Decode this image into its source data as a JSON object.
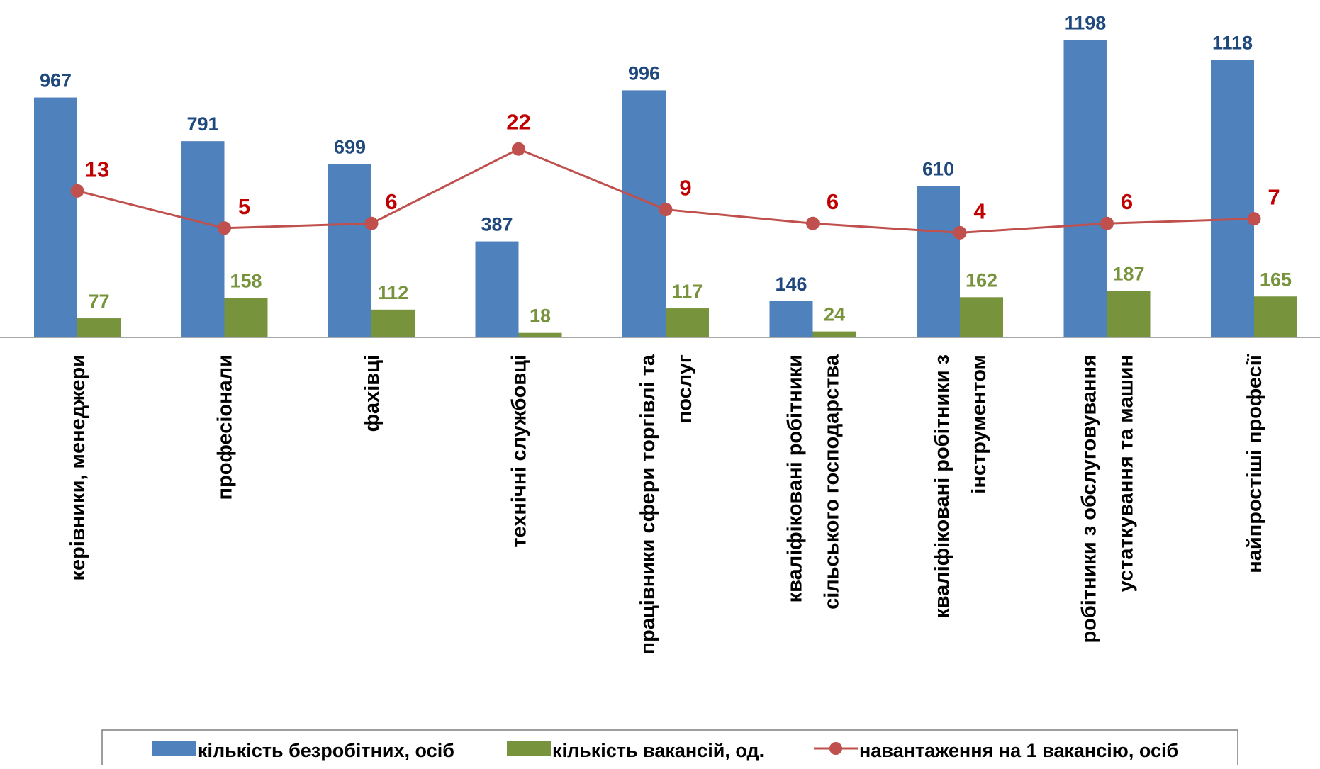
{
  "chart_data": {
    "type": "bar",
    "categories": [
      [
        "керівники, менеджери"
      ],
      [
        "професіонали"
      ],
      [
        "фахівці"
      ],
      [
        "технічні службовці"
      ],
      [
        "працівники сфери торгівлі та",
        "послуг"
      ],
      [
        "кваліфіковані робітники",
        "сільського господарства"
      ],
      [
        "кваліфіковані робітники з",
        "інструментом"
      ],
      [
        "робітники з обслуговування",
        "устаткування та машин"
      ],
      [
        "найпростіші професії"
      ]
    ],
    "series": [
      {
        "name": "кількість безробітних, осіб",
        "type": "bar",
        "color": "#4F81BD",
        "label_color": "#1F497D",
        "values": [
          967,
          791,
          699,
          387,
          996,
          146,
          610,
          1198,
          1118
        ]
      },
      {
        "name": "кількість вакансій, од.",
        "type": "bar",
        "color": "#77933C",
        "label_color": "#77933C",
        "values": [
          77,
          158,
          112,
          18,
          117,
          24,
          162,
          187,
          165
        ]
      },
      {
        "name": "навантаження на 1 вакансію, осіб",
        "type": "line",
        "color": "#C0504D",
        "label_color": "#C00000",
        "values": [
          13,
          5,
          6,
          22,
          9,
          6,
          4,
          6,
          7
        ]
      }
    ],
    "legend_position": "bottom",
    "grid": false
  }
}
